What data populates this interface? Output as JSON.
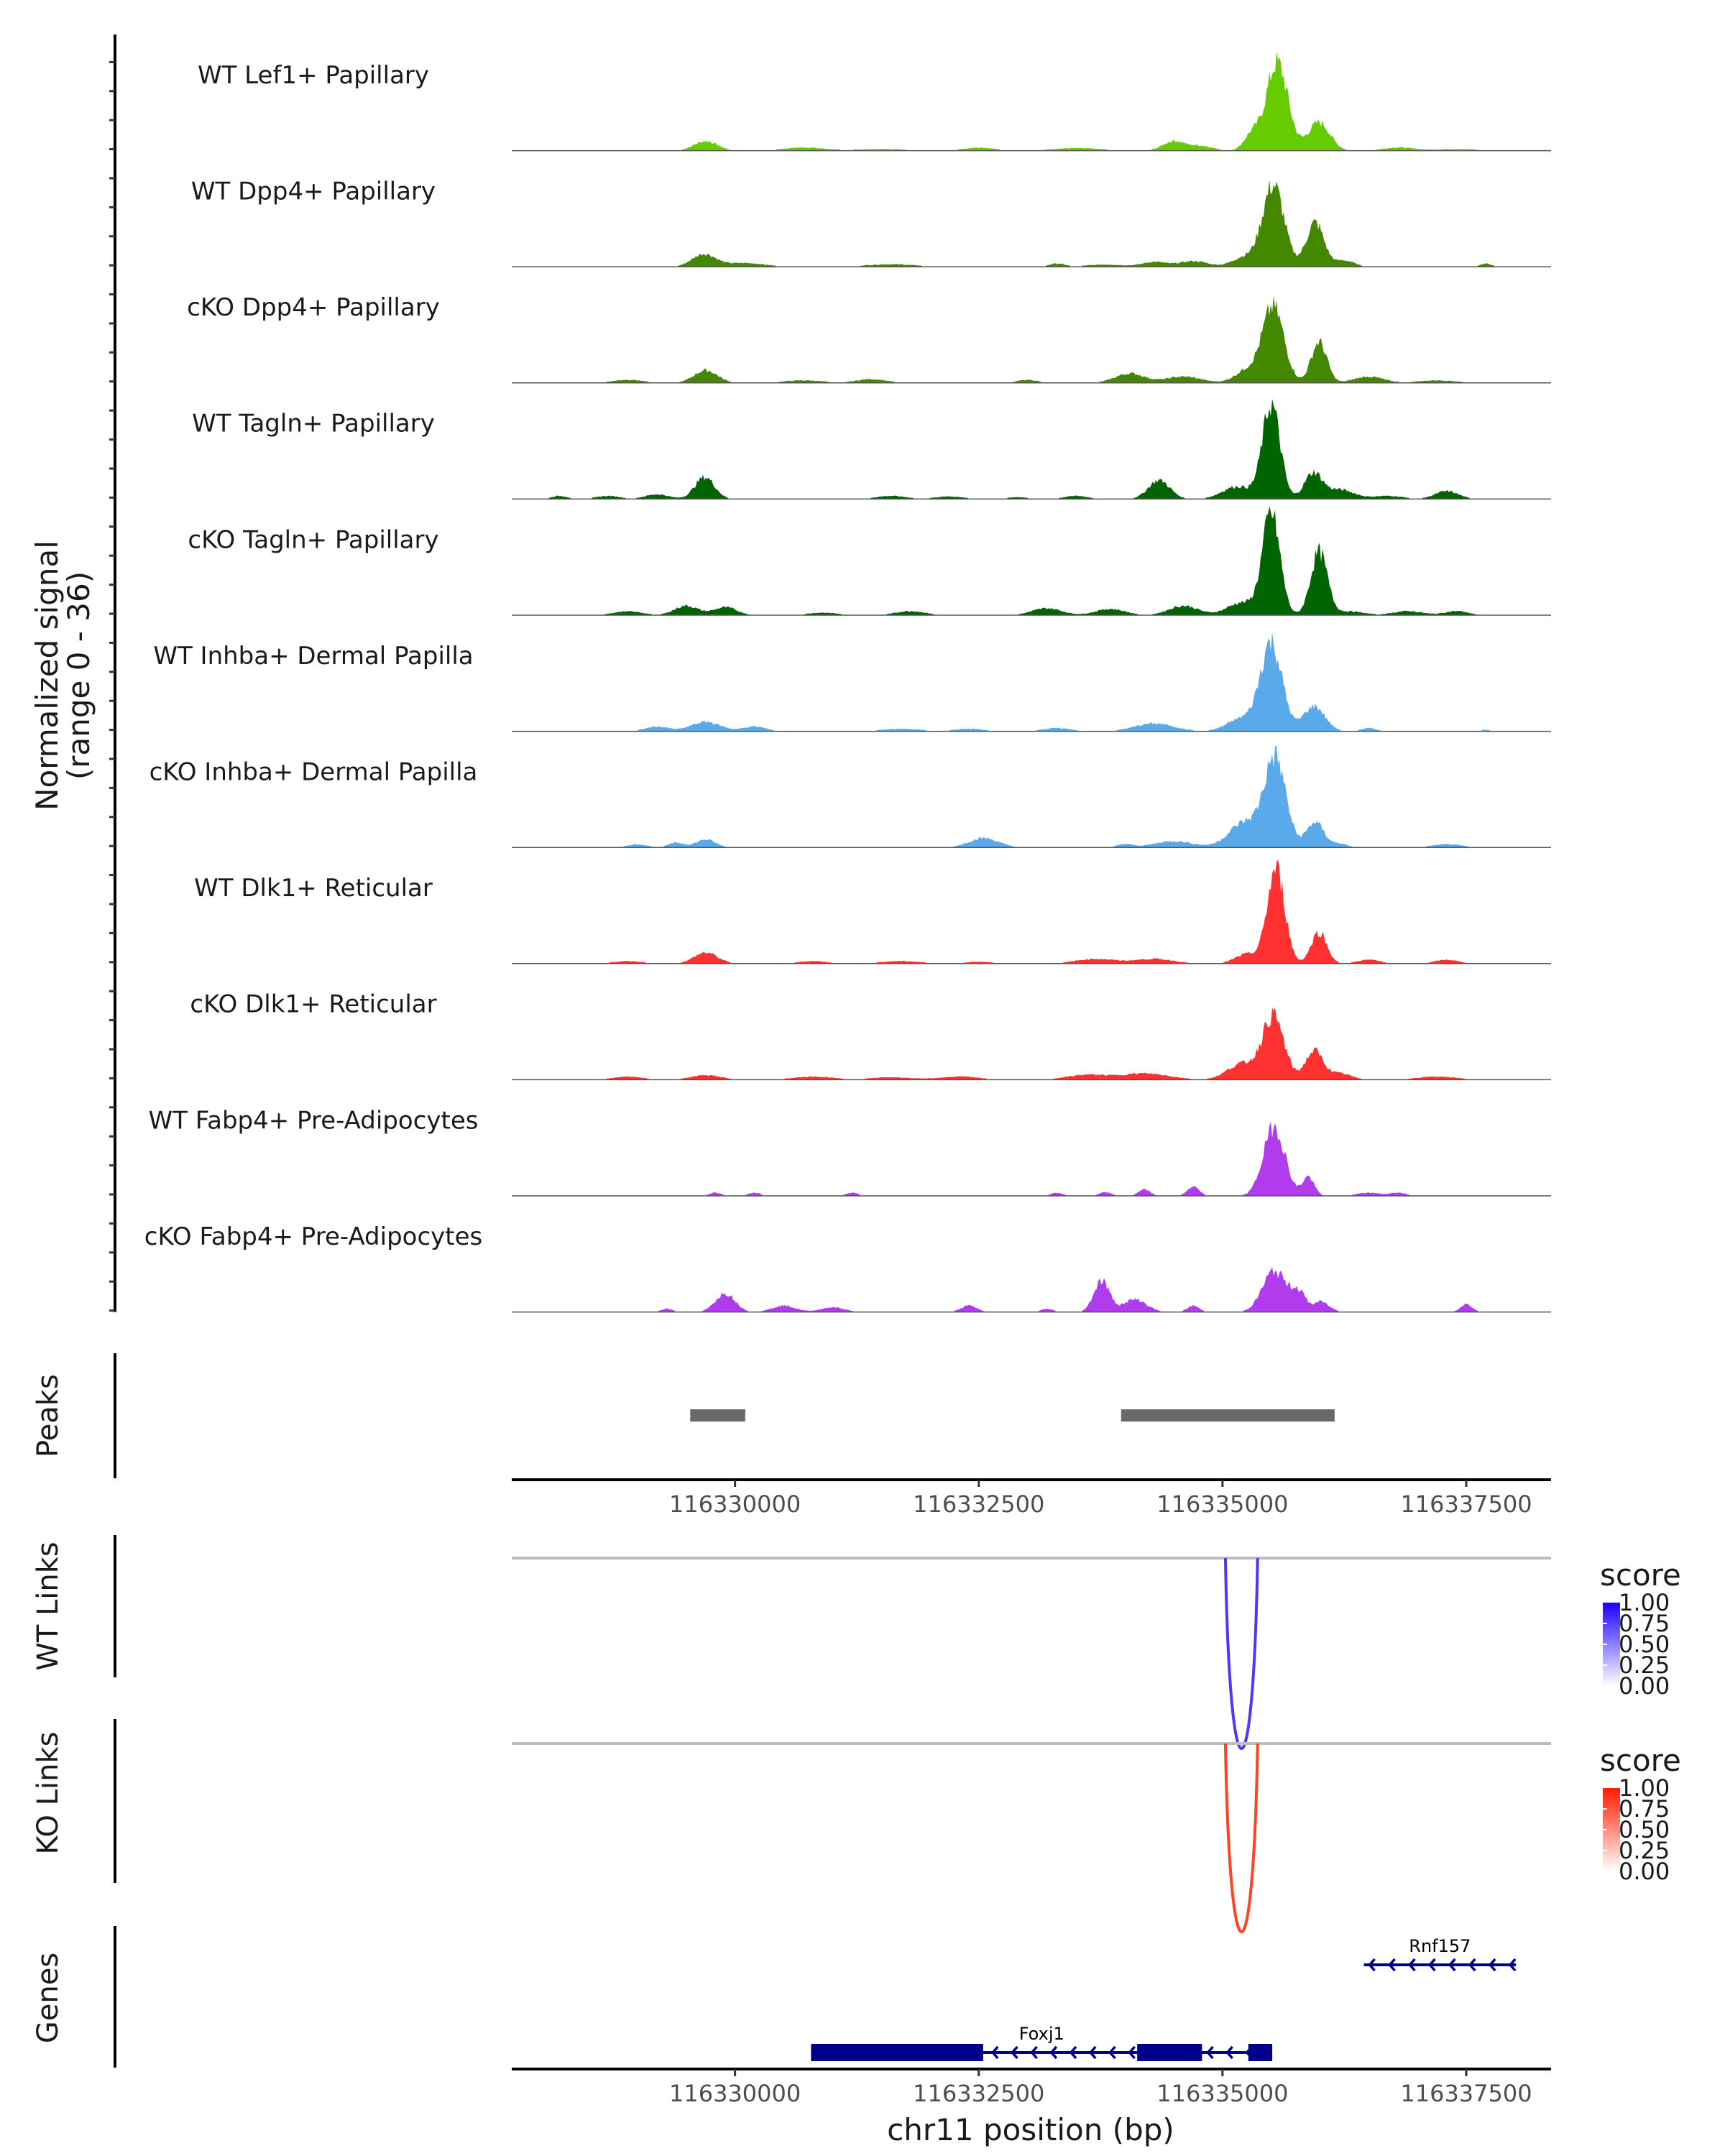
{
  "chart_data": {
    "type": "area",
    "title": "",
    "region": {
      "chromosome": "chr11",
      "start": 116327710,
      "end": 116338370
    },
    "xlabel": "chr11 position (bp)",
    "xticks": [
      116330000,
      116332500,
      116335000,
      116337500
    ],
    "xtick_labels": [
      "116330000",
      "116332500",
      "116335000",
      "116337500"
    ],
    "ylabel_line1": "Normalized signal",
    "ylabel_line2": "(range 0 - 36)",
    "ylim": [
      0,
      36
    ],
    "coverage_tracks": [
      {
        "name": "WT Lef1+ Papillary",
        "color": "#66cc00",
        "peaks": [
          [
            116335560,
            28,
            110
          ],
          [
            116335990,
            9,
            110
          ],
          [
            116335300,
            5,
            80
          ],
          [
            116329700,
            3,
            120
          ],
          [
            116334500,
            3,
            110
          ],
          [
            116334780,
            1.5,
            120
          ],
          [
            116332500,
            1,
            150
          ],
          [
            116336800,
            1,
            150
          ],
          [
            116330700,
            1,
            200
          ],
          [
            116333500,
            0.8,
            250
          ],
          [
            116337400,
            0.5,
            250
          ],
          [
            116331500,
            0.5,
            300
          ]
        ]
      },
      {
        "name": "WT Dpp4+ Papillary",
        "color": "#448800",
        "peaks": [
          [
            116335520,
            26,
            110
          ],
          [
            116335950,
            14,
            90
          ],
          [
            116335220,
            3,
            120
          ],
          [
            116329680,
            4,
            120
          ],
          [
            116336250,
            2,
            100
          ],
          [
            116334300,
            1.5,
            120
          ],
          [
            116334700,
            1.8,
            150
          ],
          [
            116330100,
            1.2,
            200
          ],
          [
            116331600,
            0.8,
            250
          ],
          [
            116333300,
            1,
            80
          ],
          [
            116333800,
            0.7,
            200
          ],
          [
            116337700,
            1,
            60
          ]
        ]
      },
      {
        "name": "cKO Dpp4+ Papillary",
        "color": "#448800",
        "peaks": [
          [
            116335520,
            24,
            110
          ],
          [
            116335990,
            13,
            80
          ],
          [
            116335250,
            4,
            120
          ],
          [
            116329700,
            4,
            120
          ],
          [
            116334050,
            3,
            150
          ],
          [
            116334600,
            2,
            180
          ],
          [
            116336500,
            2,
            150
          ],
          [
            116331400,
            1.2,
            150
          ],
          [
            116328900,
            1,
            150
          ],
          [
            116330700,
            0.8,
            200
          ],
          [
            116333000,
            1,
            100
          ],
          [
            116337200,
            0.8,
            200
          ]
        ]
      },
      {
        "name": "WT Tagln+ Papillary",
        "color": "#006400",
        "peaks": [
          [
            116335500,
            30,
            90
          ],
          [
            116335930,
            8,
            90
          ],
          [
            116334350,
            6,
            110
          ],
          [
            116335150,
            4,
            150
          ],
          [
            116336200,
            3,
            150
          ],
          [
            116329690,
            7,
            100
          ],
          [
            116329200,
            1.5,
            120
          ],
          [
            116328200,
            1,
            80
          ],
          [
            116328700,
            1,
            120
          ],
          [
            116331600,
            1,
            150
          ],
          [
            116332200,
            0.8,
            150
          ],
          [
            116333500,
            1,
            120
          ],
          [
            116337300,
            2.5,
            120
          ],
          [
            116336700,
            1,
            150
          ],
          [
            116332900,
            0.6,
            100
          ]
        ]
      },
      {
        "name": "cKO Tagln+ Papillary",
        "color": "#006400",
        "peaks": [
          [
            116335500,
            32,
            90
          ],
          [
            116335990,
            20,
            85
          ],
          [
            116335200,
            4,
            150
          ],
          [
            116329500,
            3,
            120
          ],
          [
            116329900,
            2.5,
            120
          ],
          [
            116328900,
            1.2,
            150
          ],
          [
            116331800,
            1.3,
            150
          ],
          [
            116333200,
            2.2,
            150
          ],
          [
            116333850,
            2,
            150
          ],
          [
            116334600,
            3,
            150
          ],
          [
            116336300,
            1.2,
            150
          ],
          [
            116336900,
            1.3,
            150
          ],
          [
            116337400,
            1.3,
            120
          ],
          [
            116330900,
            0.8,
            150
          ]
        ]
      },
      {
        "name": "WT Inhba+ Dermal Papilla",
        "color": "#5aaaeb",
        "peaks": [
          [
            116335500,
            28,
            110
          ],
          [
            116335940,
            8,
            110
          ],
          [
            116335200,
            4,
            150
          ],
          [
            116329700,
            3,
            150
          ],
          [
            116329200,
            1.5,
            120
          ],
          [
            116330200,
            1.5,
            120
          ],
          [
            116334300,
            2.5,
            200
          ],
          [
            116333300,
            1,
            150
          ],
          [
            116331700,
            0.8,
            200
          ],
          [
            116332400,
            0.8,
            150
          ],
          [
            116336500,
            1,
            80
          ],
          [
            116337700,
            0.5,
            60
          ]
        ]
      },
      {
        "name": "cKO Inhba+ Dermal Papilla",
        "color": "#5aaaeb",
        "peaks": [
          [
            116335540,
            28,
            110
          ],
          [
            116335950,
            8,
            90
          ],
          [
            116335230,
            8,
            160
          ],
          [
            116334500,
            2,
            200
          ],
          [
            116329700,
            2.5,
            100
          ],
          [
            116329400,
            1.5,
            80
          ],
          [
            116329000,
            1,
            100
          ],
          [
            116332550,
            3,
            150
          ],
          [
            116336200,
            1.2,
            80
          ],
          [
            116334000,
            1,
            80
          ],
          [
            116337300,
            1,
            150
          ]
        ]
      },
      {
        "name": "WT Dlk1+ Reticular",
        "color": "#ff3030",
        "peaks": [
          [
            116335550,
            30,
            90
          ],
          [
            116335990,
            10,
            80
          ],
          [
            116335250,
            3,
            120
          ],
          [
            116329700,
            3.5,
            120
          ],
          [
            116334300,
            1.5,
            200
          ],
          [
            116333700,
            1.5,
            200
          ],
          [
            116336500,
            1.2,
            120
          ],
          [
            116337300,
            1.2,
            120
          ],
          [
            116328900,
            0.8,
            150
          ],
          [
            116330800,
            0.8,
            150
          ],
          [
            116331700,
            0.8,
            200
          ],
          [
            116332500,
            0.6,
            150
          ]
        ]
      },
      {
        "name": "cKO Dlk1+ Reticular",
        "color": "#ff3030",
        "peaks": [
          [
            116335520,
            20,
            110
          ],
          [
            116335940,
            9,
            90
          ],
          [
            116335200,
            5,
            150
          ],
          [
            116336200,
            2,
            120
          ],
          [
            116334200,
            2,
            250
          ],
          [
            116333600,
            1.5,
            200
          ],
          [
            116329700,
            1.5,
            150
          ],
          [
            116328900,
            1,
            150
          ],
          [
            116330800,
            1,
            200
          ],
          [
            116332300,
            1,
            200
          ],
          [
            116337200,
            1,
            200
          ],
          [
            116331600,
            0.8,
            200
          ]
        ]
      },
      {
        "name": "WT Fabp4+ Pre-Adipocytes",
        "color": "#b03ced",
        "peaks": [
          [
            116335530,
            22,
            110
          ],
          [
            116335880,
            6,
            60
          ],
          [
            116334700,
            3,
            60
          ],
          [
            116334200,
            2,
            60
          ],
          [
            116333800,
            1.2,
            60
          ],
          [
            116329800,
            1,
            60
          ],
          [
            116330200,
            1,
            60
          ],
          [
            116331200,
            1,
            60
          ],
          [
            116333300,
            1,
            60
          ],
          [
            116336500,
            1,
            120
          ],
          [
            116336800,
            1,
            80
          ]
        ]
      },
      {
        "name": "cKO Fabp4+ Pre-Adipocytes",
        "color": "#b03ced",
        "peaks": [
          [
            116335530,
            13,
            120
          ],
          [
            116335780,
            6,
            80
          ],
          [
            116336000,
            3,
            60
          ],
          [
            116333760,
            10,
            80
          ],
          [
            116334100,
            4,
            120
          ],
          [
            116329900,
            6,
            100
          ],
          [
            116329300,
            1,
            60
          ],
          [
            116330500,
            2,
            120
          ],
          [
            116331000,
            1.5,
            120
          ],
          [
            116332400,
            2,
            80
          ],
          [
            116333200,
            1,
            60
          ],
          [
            116334700,
            2,
            60
          ],
          [
            116337500,
            2.5,
            60
          ],
          [
            116336100,
            1,
            60
          ]
        ]
      }
    ],
    "peaks_track": {
      "label": "Peaks",
      "color": "#696969",
      "ranges": [
        [
          116329540,
          116330105
        ],
        [
          116333960,
          116336150
        ]
      ]
    },
    "link_tracks": [
      {
        "label": "WT Links",
        "color": "#5533ff",
        "links": [
          {
            "start": 116335030,
            "end": 116335360,
            "score": 0.8
          }
        ],
        "legend": {
          "title": "score",
          "ticks": [
            "1.00",
            "0.75",
            "0.50",
            "0.25",
            "0.00"
          ],
          "high": "#1a00ff",
          "low": "#ffffff"
        }
      },
      {
        "label": "KO Links",
        "color": "#ff4422",
        "links": [
          {
            "start": 116335030,
            "end": 116335360,
            "score": 0.85
          }
        ],
        "legend": {
          "title": "score",
          "ticks": [
            "1.00",
            "0.75",
            "0.50",
            "0.25",
            "0.00"
          ],
          "high": "#ff1a00",
          "low": "#ffffff"
        }
      }
    ],
    "gene_track": {
      "label": "Genes",
      "color": "#00008b",
      "genes": [
        {
          "name": "Foxj1",
          "strand": "-",
          "start": 116330780,
          "end": 116335510,
          "exons": [
            [
              116330780,
              116332545
            ],
            [
              116334125,
              116334790
            ],
            [
              116335265,
              116335510
            ]
          ]
        },
        {
          "name": "Rnf157",
          "strand": "-",
          "start": 116336450,
          "end": 116338010,
          "exons": []
        }
      ]
    }
  }
}
